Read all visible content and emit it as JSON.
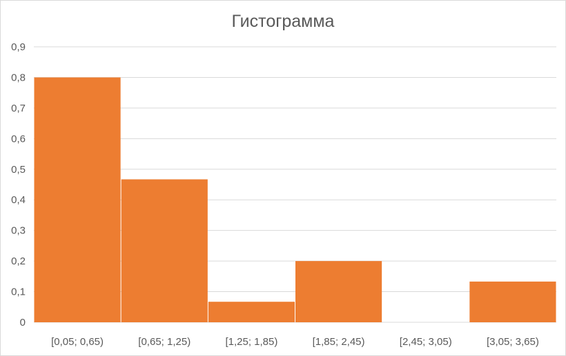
{
  "chart_data": {
    "type": "bar",
    "title": "Гистограмма",
    "categories": [
      "[0,05; 0,65)",
      "[0,65; 1,25)",
      "[1,25; 1,85)",
      "[1,85; 2,45)",
      "[2,45; 3,05)",
      "[3,05; 3,65)"
    ],
    "values": [
      0.8,
      0.467,
      0.067,
      0.2,
      0,
      0.133
    ],
    "ylim": [
      0,
      0.9
    ],
    "yticks": [
      "0",
      "0,1",
      "0,2",
      "0,3",
      "0,4",
      "0,5",
      "0,6",
      "0,7",
      "0,8",
      "0,9"
    ],
    "xlabel": "",
    "ylabel": "",
    "grid": true,
    "bar_color": "#ED7D31",
    "gridline_color": "#D9D9D9"
  }
}
